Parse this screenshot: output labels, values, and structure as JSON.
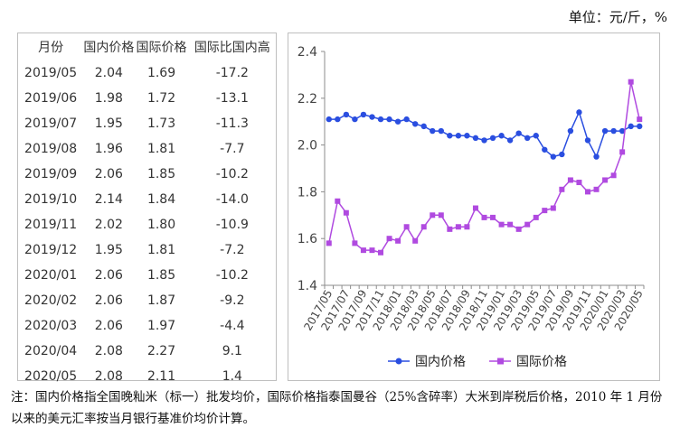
{
  "unit_label": "单位：元/斤，%",
  "table": {
    "headers": [
      "月份",
      "国内价格",
      "国际价格",
      "国际比国内高"
    ],
    "rows": [
      [
        "2019/05",
        "2.04",
        "1.69",
        "-17.2"
      ],
      [
        "2019/06",
        "1.98",
        "1.72",
        "-13.1"
      ],
      [
        "2019/07",
        "1.95",
        "1.73",
        "-11.3"
      ],
      [
        "2019/08",
        "1.96",
        "1.81",
        "-7.7"
      ],
      [
        "2019/09",
        "2.06",
        "1.85",
        "-10.2"
      ],
      [
        "2019/10",
        "2.14",
        "1.84",
        "-14.0"
      ],
      [
        "2019/11",
        "2.02",
        "1.80",
        "-10.9"
      ],
      [
        "2019/12",
        "1.95",
        "1.81",
        "-7.2"
      ],
      [
        "2020/01",
        "2.06",
        "1.85",
        "-10.2"
      ],
      [
        "2020/02",
        "2.06",
        "1.87",
        "-9.2"
      ],
      [
        "2020/03",
        "2.06",
        "1.97",
        "-4.4"
      ],
      [
        "2020/04",
        "2.08",
        "2.27",
        "9.1"
      ],
      [
        "2020/05",
        "2.08",
        "2.11",
        "1.4"
      ]
    ]
  },
  "chart_data": {
    "type": "line",
    "x": [
      "2017/05",
      "2017/06",
      "2017/07",
      "2017/08",
      "2017/09",
      "2017/10",
      "2017/11",
      "2017/12",
      "2018/01",
      "2018/02",
      "2018/03",
      "2018/04",
      "2018/05",
      "2018/06",
      "2018/07",
      "2018/08",
      "2018/09",
      "2018/10",
      "2018/11",
      "2018/12",
      "2019/01",
      "2019/02",
      "2019/03",
      "2019/04",
      "2019/05",
      "2019/06",
      "2019/07",
      "2019/08",
      "2019/09",
      "2019/10",
      "2019/11",
      "2019/12",
      "2020/01",
      "2020/02",
      "2020/03",
      "2020/04",
      "2020/05"
    ],
    "tick_labels": [
      "2017/05",
      "2017/07",
      "2017/09",
      "2017/11",
      "2018/01",
      "2018/03",
      "2018/05",
      "2018/07",
      "2018/09",
      "2018/11",
      "2019/01",
      "2019/03",
      "2019/05",
      "2019/07",
      "2019/09",
      "2019/11",
      "2020/01",
      "2020/03",
      "2020/05"
    ],
    "series": [
      {
        "name": "国内价格",
        "color": "#2a4ee0",
        "marker": "circle",
        "values": [
          2.11,
          2.11,
          2.13,
          2.11,
          2.13,
          2.12,
          2.11,
          2.11,
          2.1,
          2.11,
          2.09,
          2.08,
          2.06,
          2.06,
          2.04,
          2.04,
          2.04,
          2.03,
          2.02,
          2.03,
          2.04,
          2.02,
          2.05,
          2.03,
          2.04,
          1.98,
          1.95,
          1.96,
          2.06,
          2.14,
          2.02,
          1.95,
          2.06,
          2.06,
          2.06,
          2.08,
          2.08
        ]
      },
      {
        "name": "国际价格",
        "color": "#b04ae0",
        "marker": "square",
        "values": [
          1.58,
          1.76,
          1.71,
          1.58,
          1.55,
          1.55,
          1.54,
          1.6,
          1.59,
          1.65,
          1.59,
          1.65,
          1.7,
          1.7,
          1.64,
          1.65,
          1.65,
          1.73,
          1.69,
          1.69,
          1.66,
          1.66,
          1.64,
          1.66,
          1.69,
          1.72,
          1.73,
          1.81,
          1.85,
          1.84,
          1.8,
          1.81,
          1.85,
          1.87,
          1.97,
          2.27,
          2.11
        ]
      }
    ],
    "y_ticks": [
      "1.4",
      "1.6",
      "1.8",
      "2.0",
      "2.2",
      "2.4"
    ],
    "ylim": [
      1.4,
      2.4
    ],
    "grid": false,
    "legend_position": "bottom"
  },
  "note": "注：国内价格指全国晚籼米（标一）批发均价，国际价格指泰国曼谷（25%含碎率）大米到岸税后价格，2010 年 1 月份以来的美元汇率按当月银行基准价均价计算。"
}
